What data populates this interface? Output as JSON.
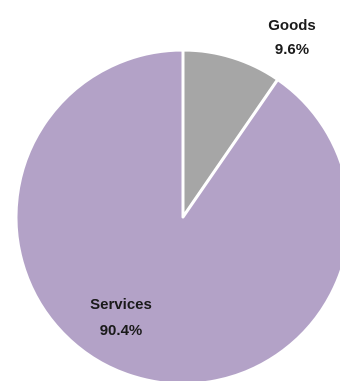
{
  "chart_data": {
    "type": "pie",
    "title": "",
    "start": "12 o'clock",
    "direction": "clockwise",
    "slices": [
      {
        "label": "Goods",
        "value": 9.6,
        "value_label": "9.6%",
        "color": "#A6A6A6"
      },
      {
        "label": "Services",
        "value": 90.4,
        "value_label": "90.4%",
        "color": "#B3A2C7"
      }
    ],
    "legend": "none",
    "separator_color": "#FFFFFF"
  }
}
